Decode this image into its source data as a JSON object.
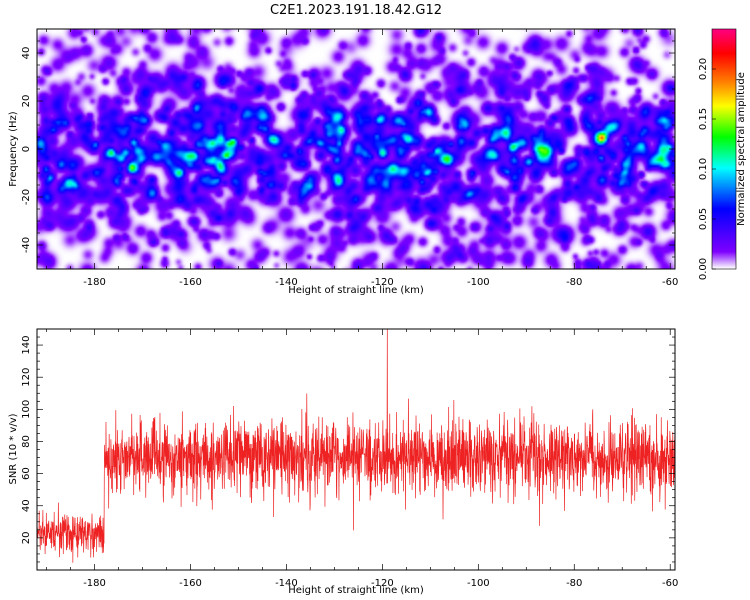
{
  "figure_title": "C2E1.2023.191.18.42.G12",
  "chart_data": [
    {
      "type": "heatmap",
      "title": "",
      "xlabel": "Height of straight line (km)",
      "ylabel": "Frequency (Hz)",
      "xlim": [
        -192,
        -59
      ],
      "ylim": [
        -50,
        50
      ],
      "xticks": [
        -180,
        -160,
        -140,
        -120,
        -100,
        -80,
        -60
      ],
      "yticks": [
        -40,
        -20,
        0,
        20,
        40
      ],
      "colorbar": {
        "label": "Normalized spectral amplitude",
        "range": [
          0,
          0.24
        ],
        "ticks": [
          "0.00",
          "0.05",
          "0.10",
          "0.15",
          "0.20"
        ],
        "colormap": [
          "#ffffff",
          "#7f00ff",
          "#0000ff",
          "#00ffff",
          "#00ff00",
          "#ffff00",
          "#ff8000",
          "#ff0000",
          "#ff0080"
        ]
      },
      "grid": false
    },
    {
      "type": "line",
      "title": "",
      "xlabel": "Height of straight line (km)",
      "ylabel": "SNR (10 * v/v)",
      "xlim": [
        -192,
        -59
      ],
      "ylim": [
        0,
        150
      ],
      "xticks": [
        -180,
        -160,
        -140,
        -120,
        -100,
        -80,
        -60
      ],
      "yticks": [
        20,
        40,
        60,
        80,
        100,
        120,
        140
      ],
      "color": "#ee2222",
      "segments": [
        {
          "x_range": [
            -192,
            -178
          ],
          "mean": 23,
          "spread": 10
        },
        {
          "x_range": [
            -178,
            -59
          ],
          "mean": 70,
          "spread": 18
        }
      ],
      "peak": {
        "x": -119,
        "y": 150
      },
      "grid": false
    }
  ]
}
